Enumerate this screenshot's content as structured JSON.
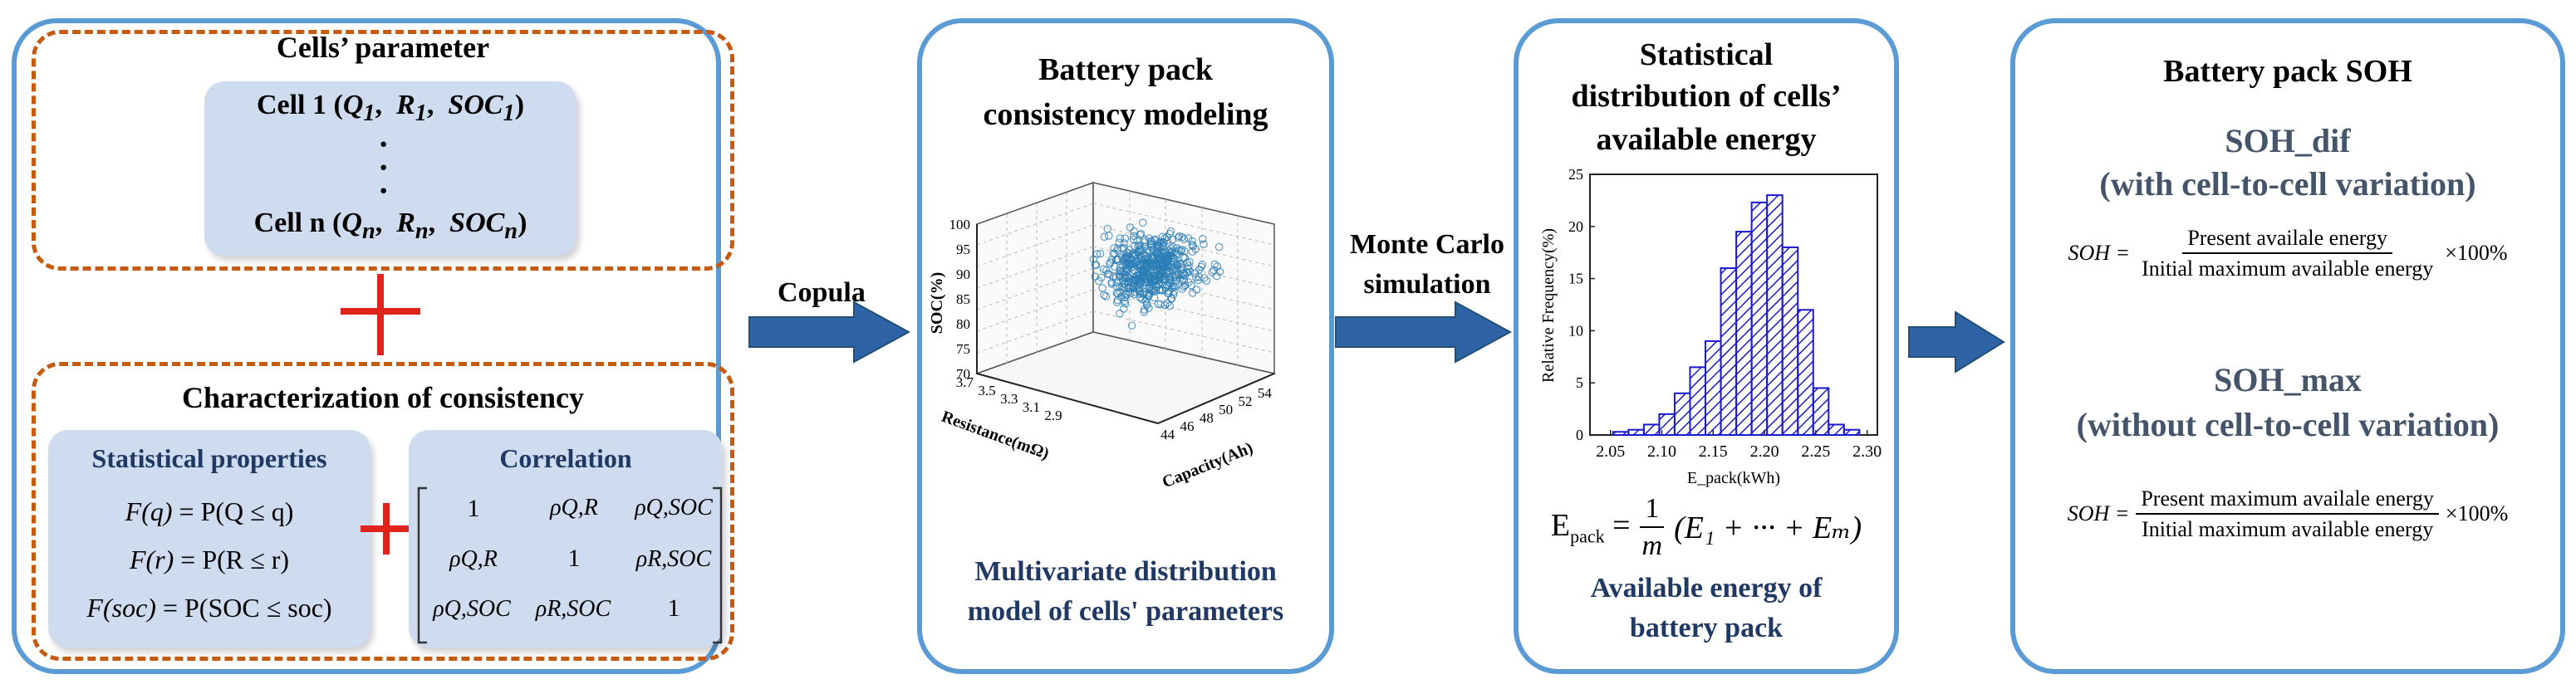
{
  "panel1": {
    "cells_title": "Cells’ parameter",
    "cell_first": {
      "label": "Cell 1 (",
      "params": [
        "Q",
        "R",
        "SOC"
      ],
      "sub": "1"
    },
    "cell_last": {
      "label": "Cell n (",
      "params": [
        "Q",
        "R",
        "SOC"
      ],
      "sub": "n"
    },
    "ellipsis": "·",
    "consistency_title": "Characterization of consistency",
    "stat_title": "Statistical properties",
    "stat_lines": [
      {
        "lhs": "F(q)",
        "rhs": "P(Q ≤ q)"
      },
      {
        "lhs": "F(r)",
        "rhs": "P(R ≤ r)"
      },
      {
        "lhs": "F(soc)",
        "rhs": "P(SOC ≤ soc)"
      }
    ],
    "corr_title": "Correlation",
    "corr_matrix": [
      [
        "1",
        "ρQ,R",
        "ρQ,SOC"
      ],
      [
        "ρQ,R",
        "1",
        "ρR,SOC"
      ],
      [
        "ρQ,SOC",
        "ρR,SOC",
        "1"
      ]
    ]
  },
  "arrow1_label": "Copula",
  "panel2": {
    "title_line1": "Battery pack",
    "title_line2": "consistency modeling",
    "caption_line1": "Multivariate distribution",
    "caption_line2": "model of cells' parameters"
  },
  "arrow2_label_line1": "Monte Carlo",
  "arrow2_label_line2": "simulation",
  "panel3": {
    "title_line1": "Statistical",
    "title_line2": "distribution of cells’",
    "title_line3": "available energy",
    "formula_lhs": "E",
    "formula_sub": "pack",
    "formula_num": "1",
    "formula_den": "m",
    "formula_rhs": "(E₁ + ··· + Eₘ)",
    "caption_line1": "Available energy of",
    "caption_line2": "battery pack"
  },
  "panel4": {
    "title": "Battery pack SOH",
    "dif_title_line1": "SOH_dif",
    "dif_title_line2": "(with cell-to-cell variation)",
    "dif_lhs": "SOH =",
    "dif_num": "Present availale energy",
    "dif_den": "Initial maximum available energy",
    "dif_mult": "×100%",
    "max_title_line1": "SOH_max",
    "max_title_line2": "(without cell-to-cell variation)",
    "max_lhs": "SOH =",
    "max_num": "Present maximum availale energy",
    "max_den": "Initial maximum available energy",
    "max_mult": "×100%"
  },
  "colors": {
    "panel_border": "#5b9bd5",
    "dash": "#c55a11",
    "arrow": "#2e64a6",
    "plus": "#e0231c",
    "title_blue": "#1f3864"
  },
  "chart_data": [
    {
      "type": "scatter",
      "title": "",
      "xlabel": "Capacity(Ah)",
      "ylabel": "Resistance(mΩ)",
      "zlabel": "SOC(%)",
      "x_ticks": [
        "44",
        "46",
        "48",
        "50",
        "52",
        "54"
      ],
      "y_ticks": [
        "2.9",
        "3.1",
        "3.3",
        "3.5",
        "3.7"
      ],
      "z_ticks": [
        "70",
        "75",
        "80",
        "85",
        "90",
        "95",
        "100"
      ],
      "xlim": [
        43,
        55
      ],
      "ylim": [
        2.8,
        3.7
      ],
      "zlim": [
        70,
        100
      ],
      "grid": true
    },
    {
      "type": "bar",
      "xlabel": "E_pack(kWh)",
      "ylabel": "Relative Frequency(%)",
      "x_ticks": [
        "2.05",
        "2.10",
        "2.15",
        "2.20",
        "2.25",
        "2.30"
      ],
      "y_ticks": [
        "0",
        "5",
        "10",
        "15",
        "20",
        "25"
      ],
      "xlim": [
        2.03,
        2.31
      ],
      "ylim": [
        0,
        25
      ],
      "bin_width": 0.015,
      "bin_centers": [
        2.06,
        2.075,
        2.09,
        2.105,
        2.12,
        2.135,
        2.15,
        2.165,
        2.18,
        2.195,
        2.21,
        2.225,
        2.24,
        2.255,
        2.27,
        2.285
      ],
      "values": [
        0.3,
        0.5,
        1,
        2,
        4,
        6.5,
        9,
        16,
        19.5,
        22.3,
        23,
        18,
        12,
        4.5,
        1,
        0.5
      ]
    }
  ]
}
